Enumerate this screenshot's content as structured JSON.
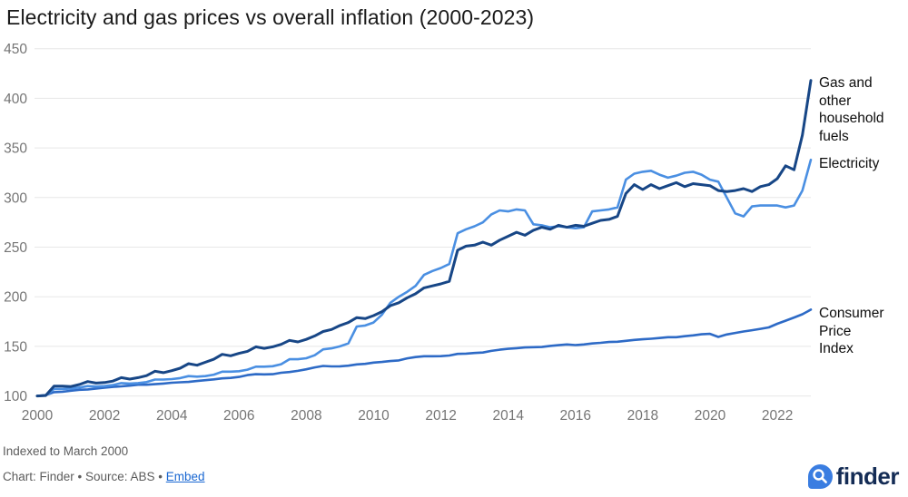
{
  "title": "Electricity and gas prices vs overall inflation (2000-2023)",
  "chart_data": {
    "type": "line",
    "title": "Electricity and gas prices vs overall inflation (2000-2023)",
    "subtitle_note": "Indexed to March 2000",
    "x_unit": "quarters",
    "x_range_start": "Mar 2000",
    "x_range_end": "Mar 2023",
    "x_ticks": [
      2000,
      2002,
      2004,
      2006,
      2008,
      2010,
      2012,
      2014,
      2016,
      2018,
      2020,
      2022
    ],
    "y_ticks": [
      100,
      150,
      200,
      250,
      300,
      350,
      400,
      450
    ],
    "ylim": [
      100,
      458
    ],
    "grid": "horizontal",
    "legend_position": "right-of-line-ends",
    "colors": {
      "grid": "#e7e7e7",
      "axis_text": "#757575"
    },
    "series": [
      {
        "name": "Gas and other household fuels",
        "label_lines": [
          "Gas and",
          "other",
          "household",
          "fuels"
        ],
        "color": "#174686",
        "stroke_width": 3,
        "values": [
          100,
          100.5,
          110,
          110,
          109.5,
          111.5,
          114.5,
          113,
          113.5,
          115,
          118.5,
          117,
          118.5,
          120.5,
          125,
          123.5,
          125.5,
          128,
          132.5,
          131,
          134,
          137,
          142,
          140.5,
          143,
          145,
          149.5,
          148,
          149.5,
          152,
          156,
          154.5,
          157,
          160.5,
          165,
          167,
          171,
          174,
          179,
          178,
          181,
          185,
          191,
          194,
          199,
          203,
          209,
          211,
          213,
          215.5,
          247,
          251,
          252,
          255,
          252,
          257,
          261,
          265,
          262,
          267,
          270,
          268,
          272,
          270,
          272,
          271,
          274,
          277,
          278,
          281,
          304,
          313,
          308,
          313,
          309,
          312,
          315,
          311,
          314,
          313,
          312,
          307,
          306,
          307,
          309,
          306,
          311,
          313,
          319,
          332,
          328,
          363,
          418
        ]
      },
      {
        "name": "Electricity",
        "label_lines": [
          "Electricity"
        ],
        "color": "#4a8fe2",
        "stroke_width": 2.6,
        "values": [
          100,
          100.5,
          107,
          107,
          107.5,
          108.5,
          110,
          109.5,
          110,
          111,
          113,
          112.5,
          113,
          114,
          116.5,
          116.5,
          117,
          118,
          120,
          119.5,
          120,
          121.5,
          124.5,
          124.5,
          125,
          126.5,
          129.5,
          129.5,
          130,
          132,
          137,
          137,
          138,
          141,
          147,
          148,
          150,
          153,
          170,
          171,
          174,
          182,
          194,
          200,
          205,
          211,
          222,
          226,
          229,
          233,
          264,
          268,
          271,
          275,
          283,
          287,
          286,
          288,
          287,
          273,
          272,
          270,
          271,
          270,
          269,
          270,
          286,
          287,
          288,
          290,
          318,
          324,
          326,
          327,
          323,
          320,
          322,
          325,
          326,
          323,
          318,
          316,
          300,
          284,
          281,
          291,
          292,
          292,
          292,
          290,
          292,
          307,
          338
        ]
      },
      {
        "name": "Consumer Price Index",
        "label_lines": [
          "Consumer",
          "Price",
          "Index"
        ],
        "color": "#2d6ac6",
        "stroke_width": 2.6,
        "values": [
          100,
          100.8,
          103.8,
          104.2,
          105.3,
          106.2,
          106.6,
          107.5,
          108.3,
          109.1,
          109.7,
          110.4,
          111.3,
          111.3,
          111.9,
          112.5,
          113.3,
          113.8,
          114.2,
          115.1,
          115.9,
          116.7,
          117.7,
          118.2,
          119.2,
          121,
          121.9,
          121.8,
          121.9,
          123.4,
          124.1,
          125.3,
          126.9,
          128.8,
          130.3,
          129.8,
          129.9,
          130.5,
          131.8,
          132.4,
          133.6,
          134.3,
          135.2,
          135.8,
          137.9,
          139.2,
          140,
          140,
          140.1,
          140.8,
          142.4,
          142.7,
          143.3,
          143.8,
          145.4,
          146.6,
          147.5,
          148.2,
          148.9,
          149.2,
          149.4,
          150.5,
          151.2,
          151.9,
          151.3,
          151.9,
          152.9,
          153.6,
          154.4,
          154.7,
          155.6,
          156.5,
          157.1,
          157.7,
          158.4,
          159.2,
          159.2,
          160.2,
          161.1,
          162.2,
          162.6,
          159.5,
          162,
          163.5,
          165,
          166.3,
          167.6,
          169.1,
          172.8,
          175.9,
          179.1,
          182.4,
          187
        ]
      }
    ]
  },
  "footer": {
    "note": "Indexed to March 2000",
    "credit": "Chart: Finder • Source: ABS • ",
    "embed_label": "Embed"
  },
  "logo": {
    "text": "finder"
  }
}
